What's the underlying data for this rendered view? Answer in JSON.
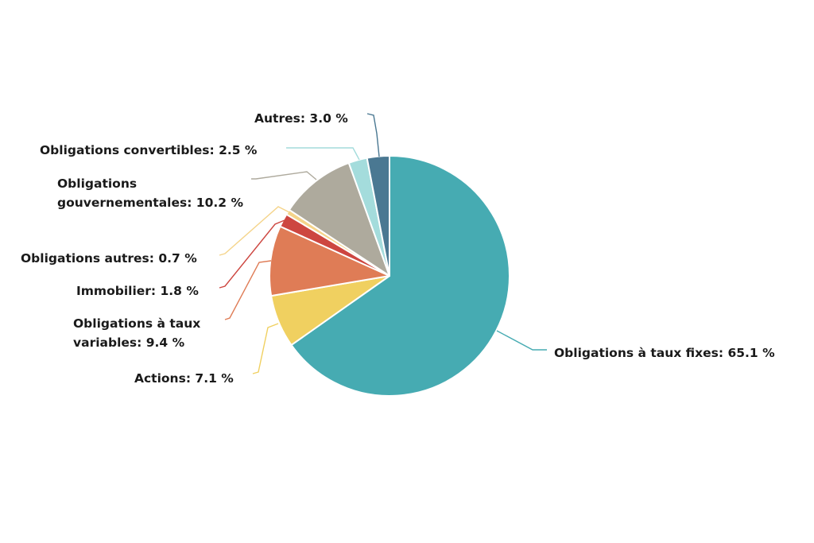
{
  "chart_data": {
    "type": "pie",
    "title": "",
    "slices": [
      {
        "label": "Obligations à taux fixes",
        "value": 65.1,
        "display": "Obligations à taux fixes: 65.1 %",
        "color": "#46abb2"
      },
      {
        "label": "Actions",
        "value": 7.1,
        "display": "Actions: 7.1 %",
        "color": "#f0d060"
      },
      {
        "label": "Obligations à taux variables",
        "value": 9.4,
        "display": "Obligations à taux variables: 9.4 %",
        "color": "#df7c56"
      },
      {
        "label": "Immobilier",
        "value": 1.8,
        "display": "Immobilier: 1.8 %",
        "color": "#cd4640"
      },
      {
        "label": "Obligations autres",
        "value": 0.7,
        "display": "Obligations autres: 0.7 %",
        "color": "#f5d48a"
      },
      {
        "label": "Obligations gouvernementales",
        "value": 10.2,
        "display": "Obligations gouvernementales: 10.2 %",
        "color": "#aeaa9d"
      },
      {
        "label": "Obligations convertibles",
        "value": 2.5,
        "display": "Obligations convertibles: 2.5 %",
        "color": "#a4dcdc"
      },
      {
        "label": "Autres",
        "value": 3.0,
        "display": "Autres: 3.0 %",
        "color": "#4a7892"
      }
    ]
  }
}
